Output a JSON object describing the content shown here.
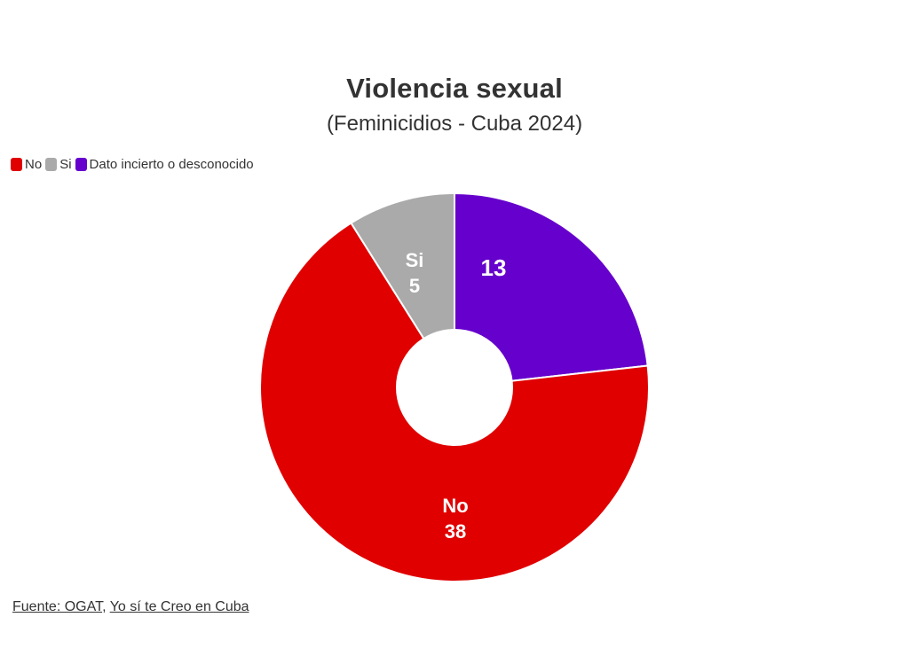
{
  "chart_data": {
    "type": "pie",
    "title": "Violencia sexual",
    "subtitle": "(Feminicidios - Cuba 2024)",
    "categories": [
      "No",
      "Si",
      "Dato incierto o desconocido"
    ],
    "values": [
      38,
      5,
      13
    ],
    "colors": [
      "#e00000",
      "#aaaaaa",
      "#6600cc"
    ],
    "slice_labels": [
      {
        "name": "No",
        "value": "38"
      },
      {
        "name": "Si",
        "value": "5"
      },
      {
        "name": "",
        "value": "13"
      }
    ],
    "donut": true,
    "legend_position": "top-left"
  },
  "legend": {
    "items": [
      {
        "label": "No",
        "color": "#e00000"
      },
      {
        "label": "Si",
        "color": "#aaaaaa"
      },
      {
        "label": "Dato incierto o desconocido",
        "color": "#6600cc"
      }
    ]
  },
  "footer": {
    "prefix": "Fuente: OGAT",
    "separator": ", ",
    "link_label": "Yo sí te Creo en Cuba"
  }
}
